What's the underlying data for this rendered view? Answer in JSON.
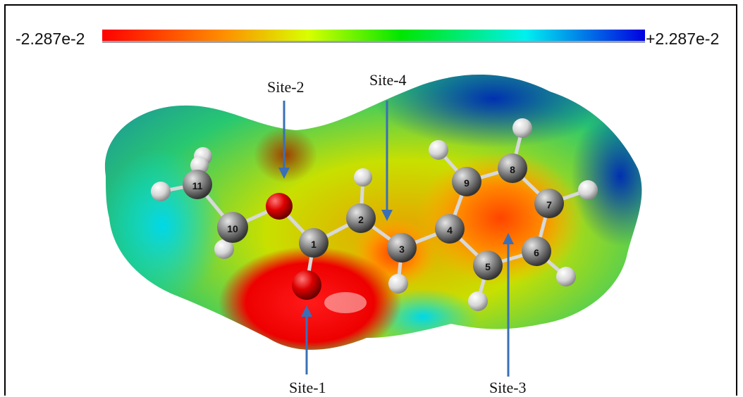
{
  "color_scale": {
    "min_label": "-2.287e-2",
    "max_label": "+2.287e-2",
    "colors": [
      "#ff0000",
      "#ff8800",
      "#ffff00",
      "#00ee00",
      "#00ffff",
      "#0000ff"
    ]
  },
  "sites": {
    "site1": "Site-1",
    "site2": "Site-2",
    "site3": "Site-3",
    "site4": "Site-4"
  },
  "atoms": {
    "a1": "1",
    "a2": "2",
    "a3": "3",
    "a4": "4",
    "a5": "5",
    "a6": "6",
    "a7": "7",
    "a8": "8",
    "a9": "9",
    "a10": "10",
    "a11": "11"
  },
  "arrow_color": "#3a6fb8"
}
